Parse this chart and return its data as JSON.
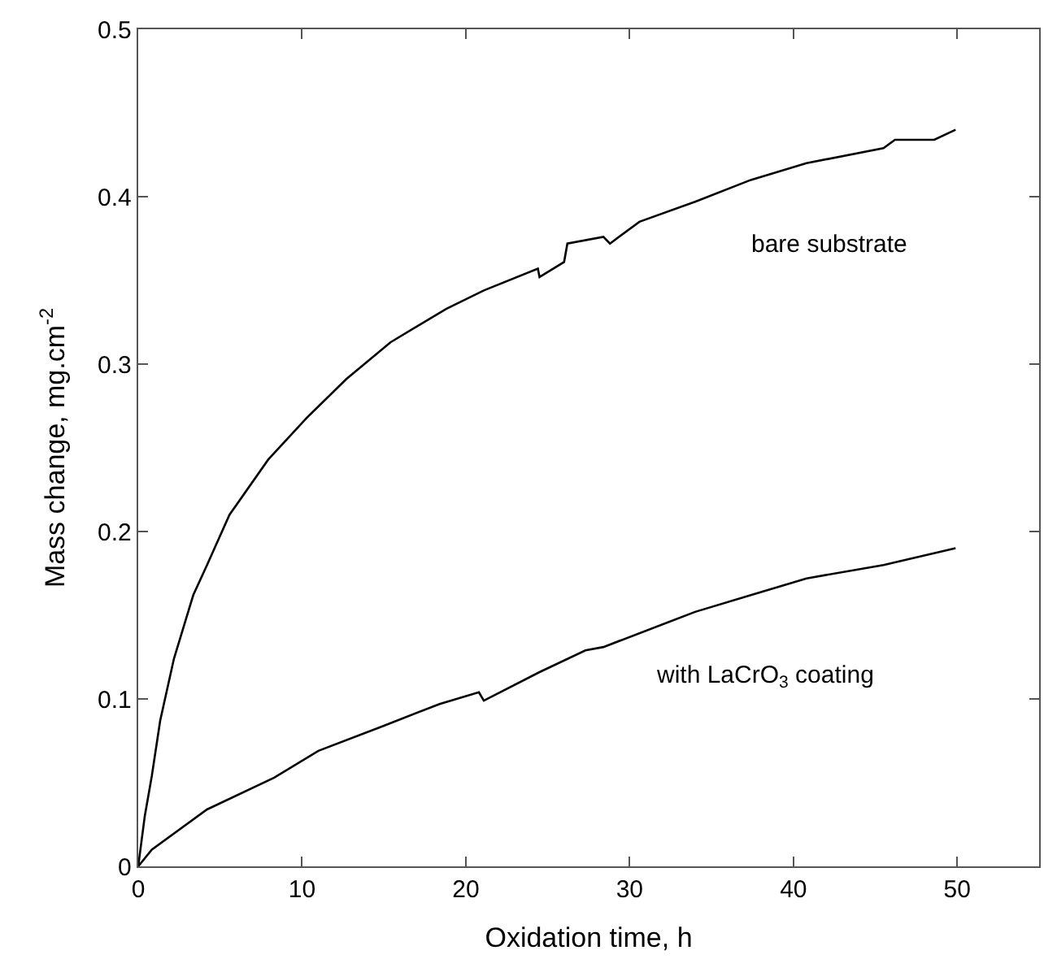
{
  "chart_data": {
    "type": "line",
    "xlabel": "Oxidation time, h",
    "ylabel": "Mass change, mg.cm$^{-2}$",
    "xlim": [
      0,
      55
    ],
    "xticks": [
      0,
      10,
      20,
      30,
      40,
      50
    ],
    "ylim": [
      0,
      0.5
    ],
    "yticks": [
      0,
      0.1,
      0.2,
      0.3,
      0.4,
      0.5
    ],
    "legend": false,
    "marker": "none",
    "line_style": "solid",
    "series": [
      {
        "name": "bare substrate",
        "color": "#000000",
        "x": [
          0,
          0.4,
          0.83,
          1.34,
          2.18,
          3.36,
          4.2,
          5.57,
          7.94,
          10.3,
          12.7,
          15.4,
          18.8,
          21.1,
          24.4,
          24.5,
          26.0,
          26.2,
          28.4,
          28.8,
          30.6,
          34.0,
          37.4,
          40.8,
          45.5,
          46.2,
          48.6,
          49.9
        ],
        "values": [
          0,
          0.03,
          0.054,
          0.087,
          0.124,
          0.162,
          0.18,
          0.21,
          0.243,
          0.268,
          0.291,
          0.313,
          0.333,
          0.344,
          0.357,
          0.352,
          0.361,
          0.372,
          0.376,
          0.372,
          0.385,
          0.397,
          0.41,
          0.42,
          0.429,
          0.434,
          0.434,
          0.44
        ]
      },
      {
        "name": "with LaCrO$_{3}$ coating",
        "color": "#000000",
        "x": [
          0,
          0.83,
          4.2,
          8.3,
          11.0,
          15.0,
          18.4,
          20.8,
          21.1,
          24.5,
          27.3,
          28.4,
          34.0,
          37.4,
          40.8,
          45.5,
          49.9
        ],
        "values": [
          0,
          0.01,
          0.034,
          0.053,
          0.069,
          0.084,
          0.097,
          0.104,
          0.099,
          0.116,
          0.129,
          0.131,
          0.152,
          0.162,
          0.172,
          0.18,
          0.19
        ]
      }
    ]
  }
}
